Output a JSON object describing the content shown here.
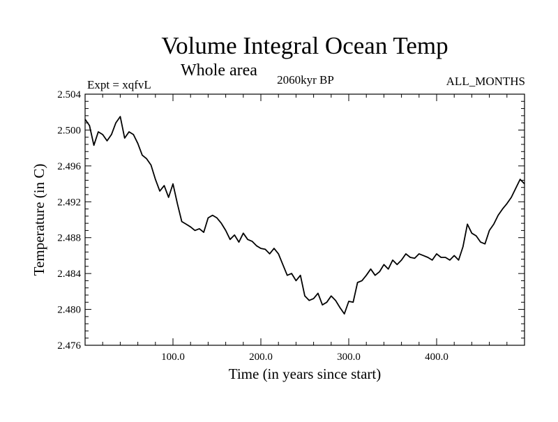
{
  "chart_data": {
    "type": "line",
    "title": "Volume Integral Ocean Temp",
    "subtitle": "Whole area",
    "annotations": {
      "left": "Expt = xqfvL",
      "center": "2060kyr BP",
      "right": "ALL_MONTHS"
    },
    "xlabel": "Time (in years since start)",
    "ylabel": "Temperature (in C)",
    "xlim": [
      0,
      500
    ],
    "ylim": [
      2.476,
      2.504
    ],
    "x_ticks": [
      100,
      200,
      300,
      400
    ],
    "x_tick_labels": [
      "100.0",
      "200.0",
      "300.0",
      "400.0"
    ],
    "y_ticks": [
      2.476,
      2.48,
      2.484,
      2.488,
      2.492,
      2.496,
      2.5,
      2.504
    ],
    "y_tick_labels": [
      "2.476",
      "2.480",
      "2.484",
      "2.488",
      "2.492",
      "2.496",
      "2.500",
      "2.504"
    ],
    "grid": false,
    "series": [
      {
        "name": "Volume integral ocean temperature",
        "color": "#000000",
        "x": [
          0,
          5,
          10,
          15,
          20,
          25,
          30,
          35,
          40,
          45,
          50,
          55,
          60,
          65,
          70,
          75,
          80,
          85,
          90,
          95,
          100,
          105,
          110,
          115,
          120,
          125,
          130,
          135,
          140,
          145,
          150,
          155,
          160,
          165,
          170,
          175,
          180,
          185,
          190,
          195,
          200,
          205,
          210,
          215,
          220,
          225,
          230,
          235,
          240,
          245,
          250,
          255,
          260,
          265,
          270,
          275,
          280,
          285,
          290,
          295,
          300,
          305,
          310,
          315,
          320,
          325,
          330,
          335,
          340,
          345,
          350,
          355,
          360,
          365,
          370,
          375,
          380,
          385,
          390,
          395,
          400,
          405,
          410,
          415,
          420,
          425,
          430,
          435,
          440,
          445,
          450,
          455,
          460,
          465,
          470,
          475,
          480,
          485,
          490,
          495,
          500
        ],
        "values": [
          2.5012,
          2.5005,
          2.4983,
          2.4998,
          2.4995,
          2.4988,
          2.4995,
          2.5008,
          2.5015,
          2.4991,
          2.4998,
          2.4995,
          2.4985,
          2.4972,
          2.4968,
          2.4961,
          2.4945,
          2.4932,
          2.4938,
          2.4925,
          2.494,
          2.4918,
          2.4898,
          2.4895,
          2.4892,
          2.4888,
          2.489,
          2.4886,
          2.4902,
          2.4905,
          2.4902,
          2.4896,
          2.4888,
          2.4878,
          2.4883,
          2.4875,
          2.4885,
          2.4878,
          2.4876,
          2.4871,
          2.4868,
          2.4867,
          2.4862,
          2.4868,
          2.4862,
          2.485,
          2.4838,
          2.484,
          2.4832,
          2.4838,
          2.4815,
          2.481,
          2.4812,
          2.4818,
          2.4805,
          2.4808,
          2.4815,
          2.481,
          2.4802,
          2.4795,
          2.4809,
          2.4808,
          2.483,
          2.4832,
          2.4838,
          2.4845,
          2.4838,
          2.4842,
          2.485,
          2.4845,
          2.4855,
          2.485,
          2.4855,
          2.4862,
          2.4858,
          2.4857,
          2.4862,
          2.486,
          2.4858,
          2.4855,
          2.4862,
          2.4858,
          2.4858,
          2.4855,
          2.486,
          2.4855,
          2.487,
          2.4895,
          2.4885,
          2.4882,
          2.4875,
          2.4873,
          2.4888,
          2.4895,
          2.4905,
          2.4912,
          2.4918,
          2.4925,
          2.4935,
          2.4945,
          2.494
        ]
      }
    ]
  }
}
